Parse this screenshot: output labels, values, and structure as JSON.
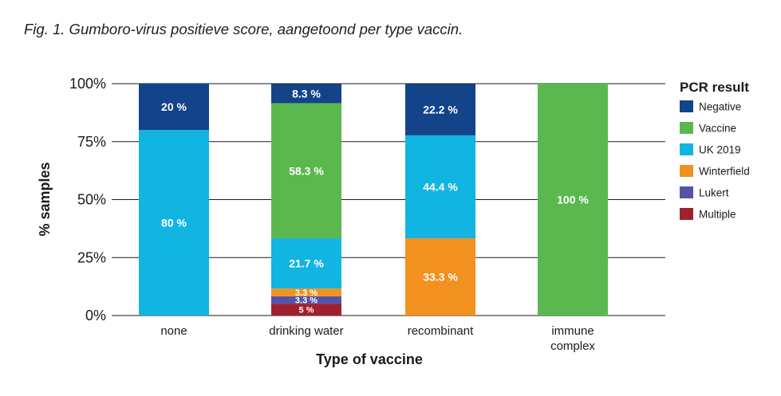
{
  "caption": "Fig. 1. Gumboro-virus positieve score, aangetoond per type vaccin.",
  "chart_data": {
    "type": "bar",
    "stacked": true,
    "xlabel": "Type of vaccine",
    "ylabel": "% samples",
    "ylim": [
      0,
      100
    ],
    "yticks": [
      "0%",
      "25%",
      "50%",
      "75%",
      "100%"
    ],
    "grid": true,
    "legend_title": "PCR result",
    "legend_position": "right",
    "categories": [
      [
        "none"
      ],
      [
        "drinking water"
      ],
      [
        "recombinant"
      ],
      [
        "immune",
        "complex"
      ]
    ],
    "series": [
      {
        "name": "Multiple",
        "color": "#a0202e",
        "values": [
          0,
          5,
          0,
          0
        ],
        "labels": [
          "",
          "5 %",
          "",
          ""
        ]
      },
      {
        "name": "Lukert",
        "color": "#5553a8",
        "values": [
          0,
          3.3,
          0,
          0
        ],
        "labels": [
          "",
          "3.3 %",
          "",
          ""
        ]
      },
      {
        "name": "Winterfield",
        "color": "#f2911f",
        "values": [
          0,
          3.3,
          33.3,
          0
        ],
        "labels": [
          "",
          "3.3 %",
          "33.3 %",
          ""
        ]
      },
      {
        "name": "UK 2019",
        "color": "#12b4e2",
        "values": [
          80,
          21.7,
          44.4,
          0
        ],
        "labels": [
          "80 %",
          "21.7 %",
          "44.4 %",
          ""
        ]
      },
      {
        "name": "Vaccine",
        "color": "#5bb84e",
        "values": [
          0,
          58.3,
          0,
          100
        ],
        "labels": [
          "",
          "58.3 %",
          "",
          "100 %"
        ]
      },
      {
        "name": "Negative",
        "color": "#134389",
        "values": [
          20,
          8.3,
          22.2,
          0
        ],
        "labels": [
          "20 %",
          "8.3 %",
          "22.2 %",
          ""
        ]
      }
    ],
    "legend_order": [
      "Negative",
      "Vaccine",
      "UK 2019",
      "Winterfield",
      "Lukert",
      "Multiple"
    ]
  }
}
